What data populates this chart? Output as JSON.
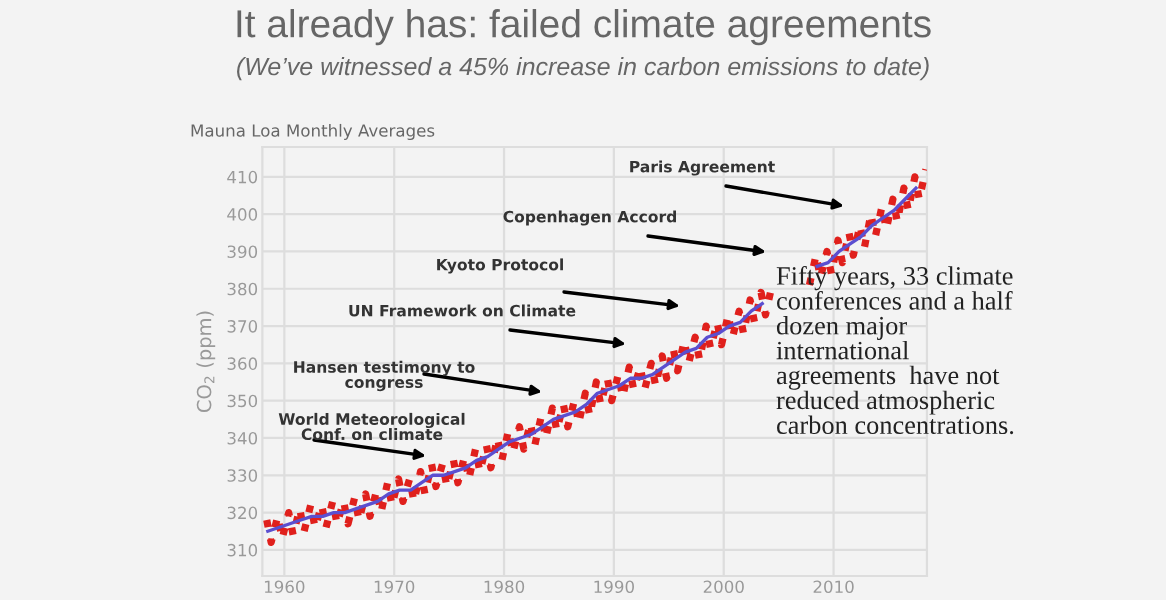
{
  "chart_data": {
    "type": "line",
    "title": "It already has: failed climate agreements",
    "subtitle": "(We’ve witnessed a 45% increase in carbon emissions to date)",
    "ylabel": "CO$_{2}$ (ppm)",
    "xlim": [
      1958,
      2018.5
    ],
    "xticks": [
      1960,
      1970,
      1980,
      1990,
      2000,
      2010
    ],
    "ylim": [
      303,
      418
    ],
    "yticks": [
      310,
      320,
      330,
      340,
      350,
      360,
      370,
      380,
      390,
      400,
      410
    ],
    "grid": true,
    "series": [
      {
        "line_style": "dotted",
        "color": "#e0201c",
        "x": [
          1958.4,
          1958.8,
          1959.4,
          1959.8,
          1960.4,
          1960.8,
          1961.4,
          1961.8,
          1962.4,
          1962.8,
          1963.4,
          1963.8,
          1964.4,
          1964.8,
          1965.4,
          1965.8,
          1966.4,
          1966.8,
          1967.4,
          1967.8,
          1968.4,
          1968.8,
          1969.4,
          1969.8,
          1970.4,
          1970.8,
          1971.4,
          1971.8,
          1972.4,
          1972.8,
          1973.4,
          1973.8,
          1974.4,
          1974.8,
          1975.4,
          1975.8,
          1976.4,
          1976.8,
          1977.4,
          1977.8,
          1978.4,
          1978.8,
          1979.4,
          1979.8,
          1980.4,
          1980.8,
          1981.4,
          1981.8,
          1982.4,
          1982.8,
          1983.4,
          1983.8,
          1984.4,
          1984.8,
          1985.4,
          1985.8,
          1986.4,
          1986.8,
          1987.4,
          1987.8,
          1988.4,
          1988.8,
          1989.4,
          1989.8,
          1990.4,
          1990.8,
          1991.4,
          1991.8,
          1992.4,
          1992.8,
          1993.4,
          1993.8,
          1994.4,
          1994.8,
          1995.4,
          1995.8,
          1996.4,
          1996.8,
          1997.4,
          1997.8,
          1998.4,
          1998.8,
          1999.4,
          1999.8,
          2000.4,
          2000.8,
          2001.4,
          2001.8,
          2002.4,
          2002.8,
          2003.4,
          2003.8,
          2004.4,
          2004.8,
          2005.4,
          2005.8,
          2006.4,
          2006.8,
          2007.4,
          2007.8,
          2008.4,
          2008.8,
          2009.4,
          2009.8,
          2010.4,
          2010.8,
          2011.4,
          2011.8,
          2012.4,
          2012.8,
          2013.4,
          2013.8,
          2014.4,
          2014.8,
          2015.4,
          2015.8,
          2016.4,
          2016.8,
          2017.4,
          2017.8,
          2018.4
        ],
        "values": [
          318,
          312,
          319,
          313,
          320,
          314,
          321,
          315,
          322,
          316,
          322,
          316,
          323,
          317,
          323,
          317,
          324,
          318,
          325,
          319,
          326,
          320,
          328,
          322,
          329,
          323,
          329,
          323,
          331,
          325,
          333,
          327,
          333,
          327,
          334,
          328,
          335,
          329,
          337,
          331,
          338,
          332,
          340,
          334,
          342,
          336,
          343,
          337,
          344,
          338,
          346,
          340,
          348,
          342,
          349,
          343,
          350,
          344,
          352,
          346,
          355,
          349,
          356,
          350,
          357,
          351,
          359,
          353,
          359,
          353,
          360,
          354,
          362,
          356,
          364,
          358,
          366,
          360,
          367,
          361,
          370,
          364,
          371,
          365,
          373,
          367,
          374,
          368,
          377,
          371,
          379,
          373,
          381,
          null,
          null,
          null,
          null,
          null,
          null,
          381,
          389,
          383,
          390,
          384,
          393,
          387,
          395,
          389,
          397,
          391,
          400,
          394,
          402,
          396,
          404,
          398,
          407,
          401,
          410,
          404,
          412
        ]
      },
      {
        "line_style": "solid",
        "color": "#5b4fd0",
        "x": [
          1958.5,
          1959.5,
          1960.5,
          1961.5,
          1962.5,
          1963.5,
          1964.5,
          1965.5,
          1966.5,
          1967.5,
          1968.5,
          1969.5,
          1970.5,
          1971.5,
          1972.5,
          1973.5,
          1974.5,
          1975.5,
          1976.5,
          1977.5,
          1978.5,
          1979.5,
          1980.5,
          1981.5,
          1982.5,
          1983.5,
          1984.5,
          1985.5,
          1986.5,
          1987.5,
          1988.5,
          1989.5,
          1990.5,
          1991.5,
          1992.5,
          1993.5,
          1994.5,
          1995.5,
          1996.5,
          1997.5,
          1998.5,
          1999.5,
          2000.5,
          2001.5,
          2002.5,
          2003.5,
          2004.5,
          2005.5,
          2006.5,
          2007.5,
          2008.5,
          2009.5,
          2010.5,
          2011.5,
          2012.5,
          2013.5,
          2014.5,
          2015.5,
          2016.5,
          2017.5
        ],
        "values": [
          315,
          316,
          317,
          318,
          319,
          319,
          320,
          320,
          321,
          322,
          323,
          325,
          326,
          326,
          328,
          330,
          330,
          331,
          332,
          334,
          335,
          337,
          339,
          340,
          341,
          343,
          345,
          346,
          347,
          349,
          352,
          353,
          354,
          356,
          356,
          357,
          359,
          361,
          363,
          364,
          367,
          368,
          370,
          371,
          374,
          376,
          null,
          null,
          null,
          null,
          386,
          387,
          390,
          392,
          394,
          397,
          399,
          401,
          404,
          407
        ]
      }
    ],
    "annotations": [
      "Mauna Loa Monthly Averages",
      "World Meteorological\nConf. on climate",
      "Hansen testimony to\ncongress",
      "UN Framework on Climate",
      "Kyoto Protocol",
      "Copenhagen Accord",
      "Paris Agreement",
      "Fifty years, 33 climate\nconferences and a half\ndozen major\ninternational\nagreements  have not\nreduced atmospheric\ncarbon concentrations."
    ]
  }
}
